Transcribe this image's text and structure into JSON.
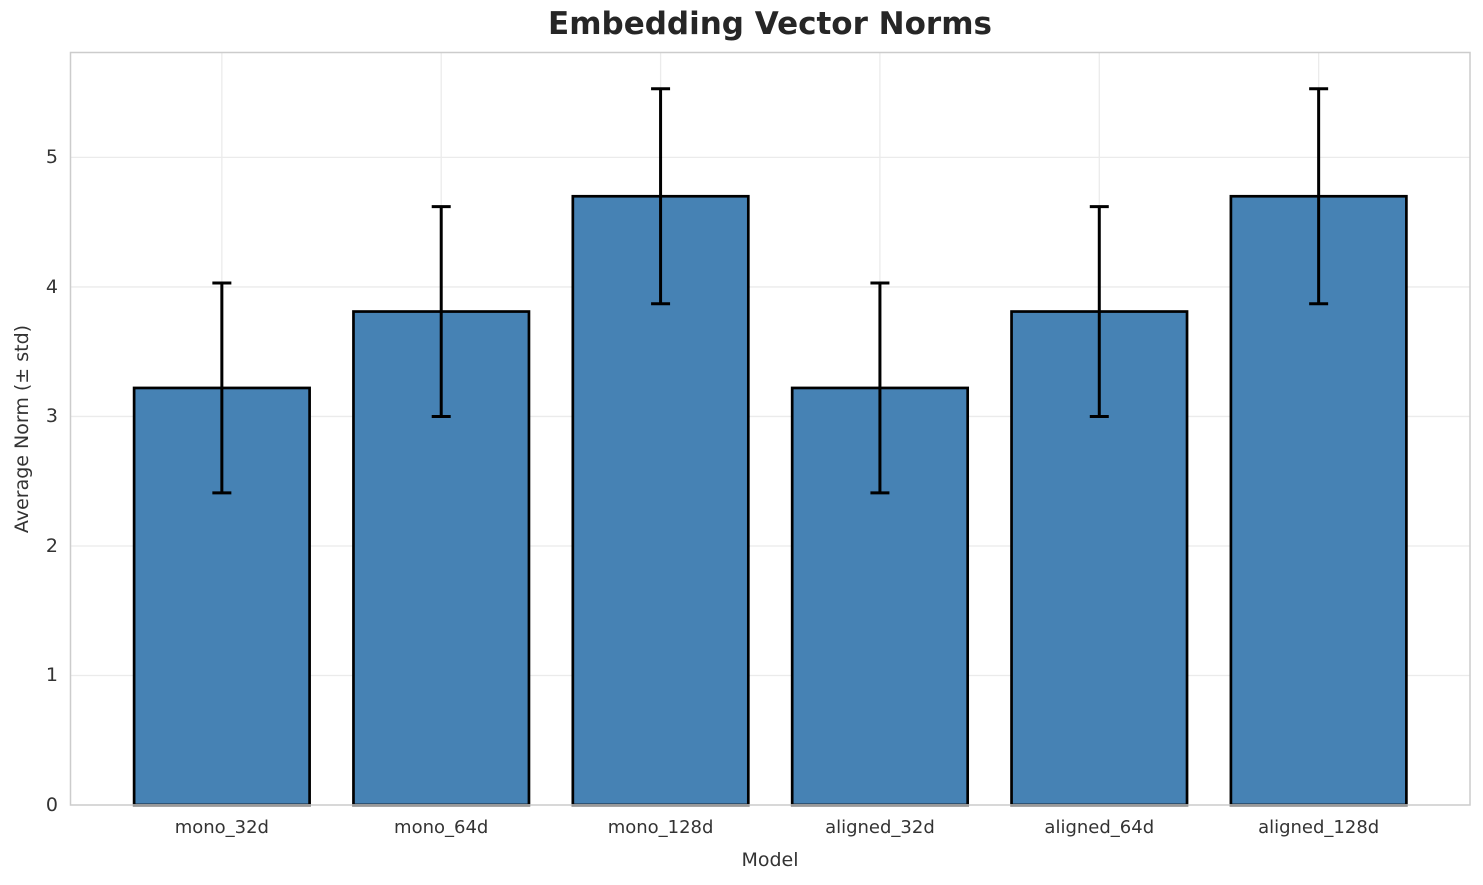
{
  "chart_data": {
    "type": "bar",
    "title": "Embedding Vector Norms",
    "xlabel": "Model",
    "ylabel": "Average Norm (± std)",
    "categories": [
      "mono_32d",
      "mono_64d",
      "mono_128d",
      "aligned_32d",
      "aligned_64d",
      "aligned_128d"
    ],
    "values": [
      3.22,
      3.81,
      4.7,
      3.22,
      3.81,
      4.7
    ],
    "errors": [
      0.81,
      0.81,
      0.83,
      0.81,
      0.81,
      0.83
    ],
    "yticks": [
      "0",
      "1",
      "2",
      "3",
      "4",
      "5"
    ],
    "ylim": [
      0,
      5.81
    ],
    "grid": true,
    "legend": "none",
    "colors": {
      "bar_fill": "#4682b4",
      "bar_edge": "#000000",
      "error_bar": "#000000",
      "grid_line": "#ebebeb",
      "spine": "#cccccc",
      "tick_text": "#333333",
      "title_text": "#262626",
      "background": "#ffffff"
    }
  }
}
